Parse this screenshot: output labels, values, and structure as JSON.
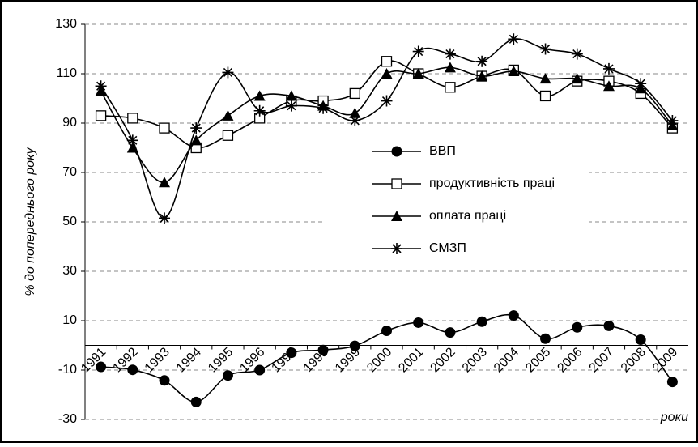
{
  "chart_data": {
    "type": "line",
    "y_label": "% до попереднього року",
    "x_label": "роки",
    "categories": [
      "1991",
      "1992",
      "1993",
      "1994",
      "1995",
      "1996",
      "1997",
      "1998",
      "1999",
      "2000",
      "2001",
      "2002",
      "2003",
      "2004",
      "2005",
      "2006",
      "2007",
      "2008",
      "2009"
    ],
    "series": [
      {
        "name": "ВВП",
        "color": "#000000",
        "marker": "circle",
        "values": [
          -8.7,
          -9.9,
          -14.2,
          -22.9,
          -12.2,
          -10,
          -3,
          -1.9,
          -0.2,
          5.9,
          9.2,
          5.2,
          9.6,
          12.1,
          2.7,
          7.3,
          7.9,
          2.3,
          -14.8
        ]
      },
      {
        "name": "продуктивність праці",
        "color": "#000000",
        "marker": "square",
        "values": [
          93,
          92,
          88,
          80,
          85,
          92,
          99,
          99,
          102,
          115,
          110,
          104.5,
          109,
          111.5,
          101,
          107,
          107,
          102,
          88
        ]
      },
      {
        "name": "оплата праці",
        "color": "#000000",
        "marker": "triangle",
        "values": [
          103,
          80,
          66,
          83,
          93,
          101,
          101,
          97,
          94,
          110,
          110,
          112.5,
          109,
          111,
          108,
          108,
          105,
          104,
          89
        ]
      },
      {
        "name": "СМЗП",
        "color": "#000000",
        "marker": "asterisk",
        "values": [
          105,
          83,
          51.5,
          88,
          110.5,
          95,
          97,
          96,
          91,
          99,
          119,
          118,
          115,
          124,
          120,
          118,
          112,
          106,
          91
        ]
      }
    ],
    "ylim": [
      -30,
      130
    ],
    "yticks": [
      -30,
      -10,
      10,
      30,
      50,
      70,
      90,
      110,
      130
    ],
    "grid": true,
    "legend": "center"
  }
}
